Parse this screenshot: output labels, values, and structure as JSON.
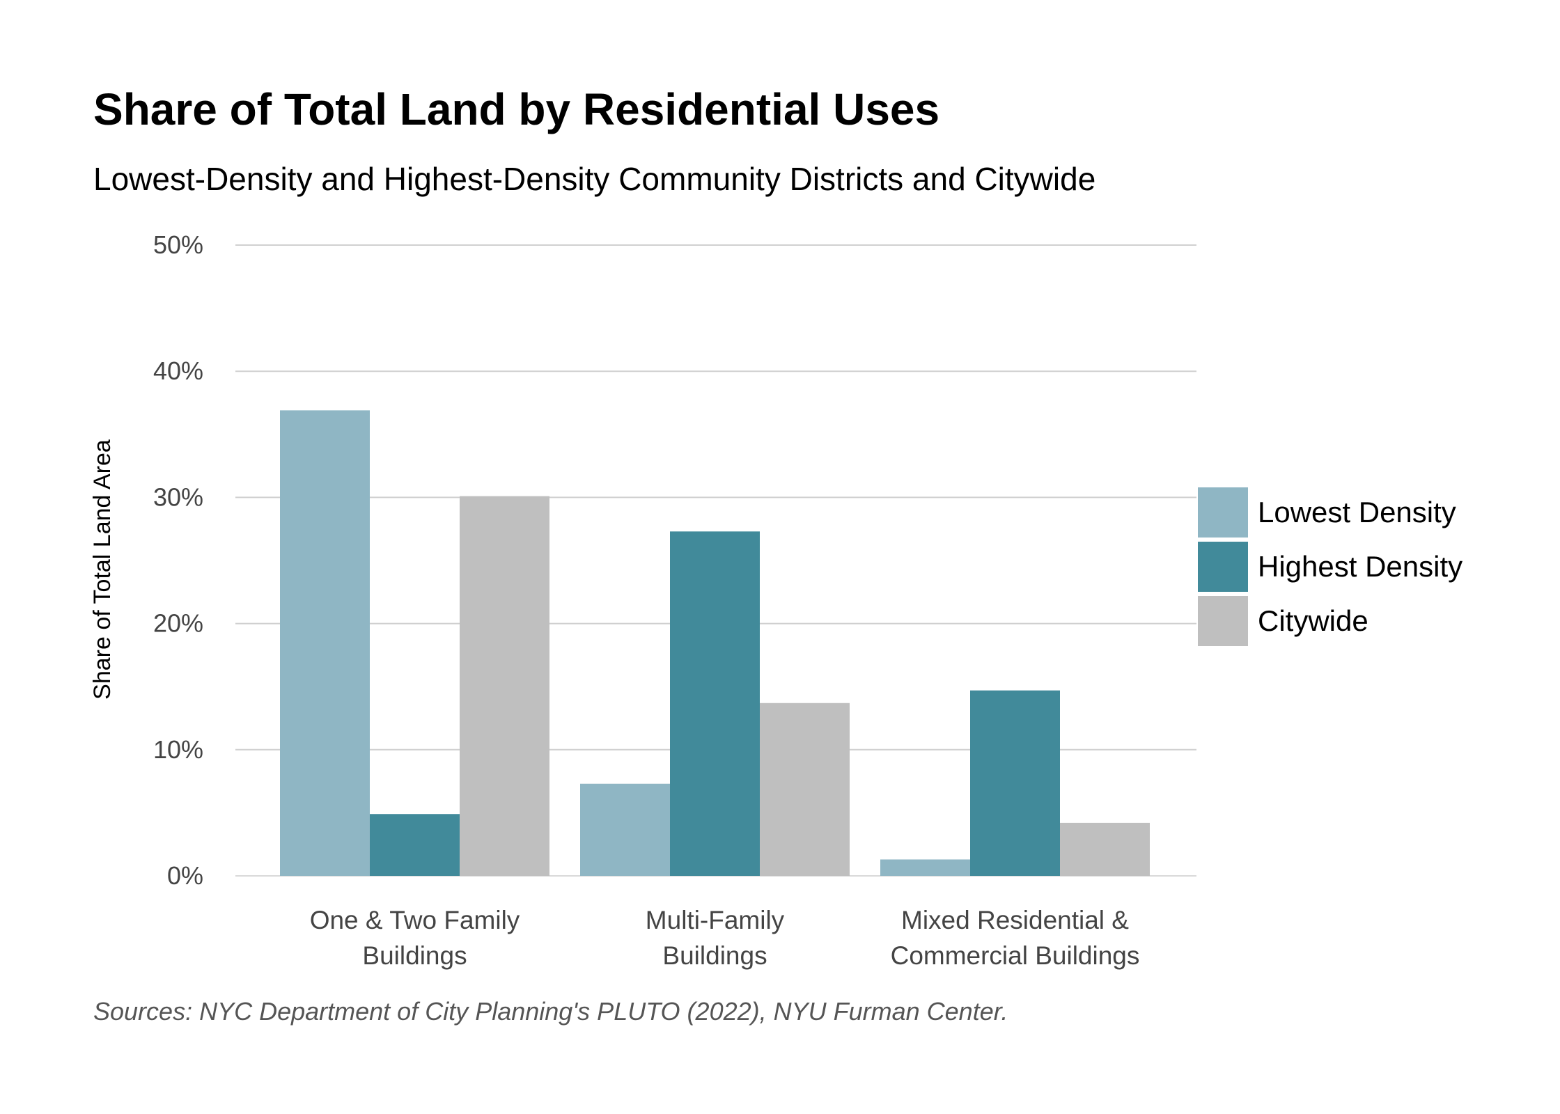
{
  "title": "Share of Total Land by Residential Uses",
  "subtitle": "Lowest-Density and Highest-Density Community Districts and Citywide",
  "source": "Sources: NYC Department of City Planning's PLUTO (2022), NYU Furman Center.",
  "chart_data": {
    "type": "bar",
    "title": "Share of Total Land by Residential Uses",
    "subtitle": "Lowest-Density and Highest-Density Community Districts and Citywide",
    "ylabel": "Share of Total Land Area",
    "xlabel": "",
    "ylim": [
      0,
      50
    ],
    "yticks": [
      0,
      10,
      20,
      30,
      40,
      50
    ],
    "ytick_labels": [
      "0%",
      "10%",
      "20%",
      "30%",
      "40%",
      "50%"
    ],
    "grid": true,
    "legend_position": "right",
    "categories": [
      [
        "One & Two Family",
        "Buildings"
      ],
      [
        "Multi-Family",
        "Buildings"
      ],
      [
        "Mixed Residential &",
        "Commercial Buildings"
      ]
    ],
    "series": [
      {
        "name": "Lowest Density",
        "color": "#8fb6c4",
        "values": [
          36.9,
          7.3,
          1.3
        ]
      },
      {
        "name": "Highest Density",
        "color": "#418a9a",
        "values": [
          4.9,
          27.3,
          14.7
        ]
      },
      {
        "name": "Citywide",
        "color": "#bfbfbf",
        "values": [
          30.1,
          13.7,
          4.2
        ]
      }
    ]
  }
}
